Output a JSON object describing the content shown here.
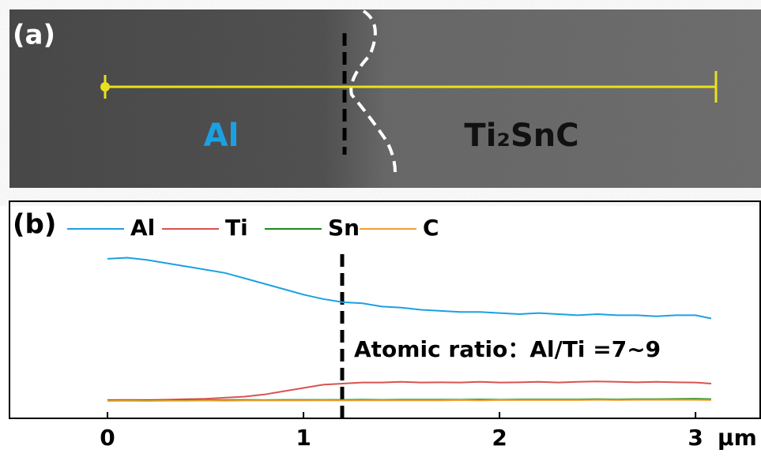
{
  "panel_a": {
    "label": "(a)",
    "phase_left": "Al",
    "phase_right": "Ti₂SnC"
  },
  "chart_data": {
    "type": "line",
    "panel_label": "(b)",
    "annotation": "Atomic ratio：Al/Ti =7~9",
    "xlabel": "μm",
    "x": [
      0,
      0.1,
      0.2,
      0.3,
      0.4,
      0.5,
      0.6,
      0.7,
      0.8,
      0.9,
      1.0,
      1.1,
      1.2,
      1.3,
      1.4,
      1.5,
      1.6,
      1.7,
      1.8,
      1.9,
      2.0,
      2.1,
      2.2,
      2.3,
      2.4,
      2.5,
      2.6,
      2.7,
      2.8,
      2.9,
      3.0,
      3.08
    ],
    "series": [
      {
        "name": "Al",
        "color": "#1ba1e2",
        "values": [
          73.5,
          74,
          73,
          71.5,
          70,
          68.5,
          67,
          64.5,
          62,
          59.5,
          57,
          55,
          53.5,
          53,
          51.5,
          51,
          50,
          49.5,
          49,
          49,
          48.5,
          48,
          48.5,
          48,
          47.5,
          48,
          47.5,
          47.5,
          47,
          47.5,
          47.5,
          46
        ]
      },
      {
        "name": "Ti",
        "color": "#d9534f",
        "values": [
          8.4,
          8.5,
          8.4,
          8.6,
          8.8,
          9,
          9.5,
          10,
          11,
          12.5,
          14,
          15.5,
          16,
          16.5,
          16.5,
          16.8,
          16.5,
          16.6,
          16.5,
          16.8,
          16.5,
          16.6,
          16.8,
          16.5,
          16.8,
          17,
          16.8,
          16.6,
          16.8,
          16.6,
          16.5,
          16
        ]
      },
      {
        "name": "Sn",
        "color": "#1a8a1a",
        "values": [
          8.3,
          8.3,
          8.4,
          8.3,
          8.4,
          8.4,
          8.4,
          8.5,
          8.4,
          8.5,
          8.5,
          8.5,
          8.5,
          8.6,
          8.5,
          8.6,
          8.6,
          8.6,
          8.6,
          8.7,
          8.6,
          8.7,
          8.7,
          8.7,
          8.7,
          8.8,
          8.7,
          8.8,
          8.8,
          8.9,
          9,
          8.8
        ]
      },
      {
        "name": "C",
        "color": "#f0a030",
        "values": [
          8,
          8.1,
          8,
          8.1,
          8.1,
          8.2,
          8.1,
          8.2,
          8.2,
          8.2,
          8.2,
          8.3,
          8.2,
          8.3,
          8.3,
          8.3,
          8.3,
          8.3,
          8.4,
          8.3,
          8.4,
          8.4,
          8.4,
          8.4,
          8.4,
          8.5,
          8.4,
          8.5,
          8.5,
          8.5,
          8.5,
          8.4
        ]
      }
    ],
    "xlim": [
      -0.5,
      3.33
    ],
    "ylim": [
      0,
      100
    ],
    "xticks": [
      0,
      1,
      2,
      3
    ],
    "legend": "top"
  }
}
